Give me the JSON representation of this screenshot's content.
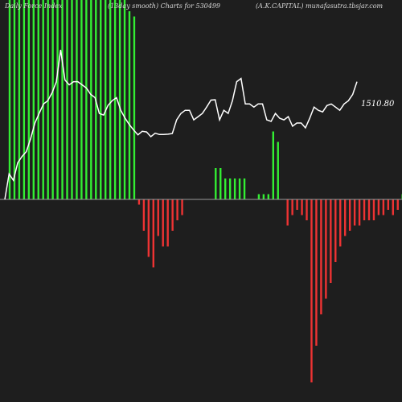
{
  "header": {
    "left": "Daily Force Index",
    "middle": "(13day smooth) Charts for 530499",
    "right": "(A.K.CAPITAL) munafasutra.tbsjar.com"
  },
  "chart_data": {
    "type": "bar",
    "title": "",
    "xlabel": "",
    "ylabel": "",
    "colors": {
      "positive": "#33ee33",
      "negative": "#ee3333",
      "line": "#ffffff",
      "zero": "#9a9a9a",
      "background": "#1e1e1e"
    },
    "bar_values": [
      92,
      90,
      98,
      93,
      95,
      93,
      95,
      97,
      94,
      92,
      92,
      90,
      93,
      97,
      97,
      95,
      91,
      90,
      79,
      73,
      66,
      52,
      42,
      42,
      39,
      36,
      35,
      -1,
      -6,
      -11,
      -13,
      -7,
      -9,
      -9,
      -6,
      -4,
      -3,
      0,
      0,
      0,
      0,
      0,
      0,
      6,
      6,
      4,
      4,
      4,
      4,
      4,
      0,
      0,
      1,
      1,
      1,
      13,
      11,
      0,
      -5,
      -3,
      -2,
      -3,
      -4,
      -35,
      -28,
      -22,
      -19,
      -16,
      -12,
      -9,
      -7,
      -6,
      -5,
      -5,
      -4,
      -4,
      -4,
      -3,
      -3,
      -2,
      -3,
      -2,
      1
    ],
    "bar_scale_max": 20,
    "bars_clipped_above_top": true,
    "price_line": [
      1130,
      1210,
      1190,
      1245,
      1265,
      1280,
      1320,
      1370,
      1400,
      1430,
      1440,
      1465,
      1500,
      1600,
      1505,
      1490,
      1500,
      1500,
      1490,
      1480,
      1460,
      1450,
      1400,
      1395,
      1425,
      1440,
      1450,
      1410,
      1385,
      1365,
      1348,
      1333,
      1344,
      1342,
      1327,
      1338,
      1334,
      1334,
      1335,
      1337,
      1380,
      1400,
      1410,
      1410,
      1380,
      1390,
      1400,
      1420,
      1442,
      1443,
      1380,
      1410,
      1400,
      1440,
      1500,
      1510,
      1430,
      1430,
      1420,
      1430,
      1430,
      1380,
      1375,
      1400,
      1385,
      1380,
      1390,
      1360,
      1370,
      1370,
      1355,
      1385,
      1420,
      1410,
      1405,
      1425,
      1430,
      1420,
      1410,
      1430,
      1440,
      1460,
      1500
    ],
    "last_price_label": "1510.80"
  }
}
